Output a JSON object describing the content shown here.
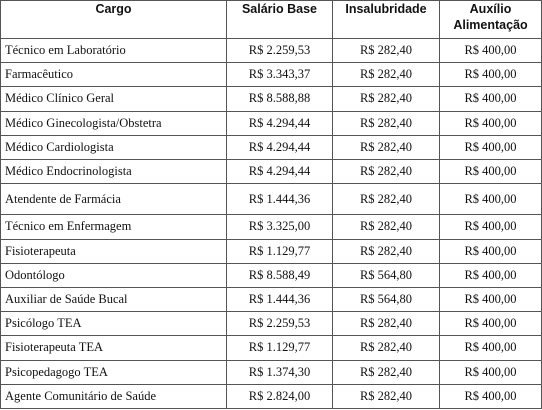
{
  "table": {
    "headers": {
      "cargo": "Cargo",
      "salario": "Salário Base",
      "insalubridade": "Insalubridade",
      "auxilio_line1": "Auxílio",
      "auxilio_line2": "Alimentação"
    },
    "rows": [
      {
        "cargo": "Técnico em Laboratório",
        "salario": "R$ 2.259,53",
        "insalubridade": "R$ 282,40",
        "auxilio": "R$ 400,00"
      },
      {
        "cargo": "Farmacêutico",
        "salario": "R$ 3.343,37",
        "insalubridade": "R$ 282,40",
        "auxilio": "R$ 400,00"
      },
      {
        "cargo": "Médico Clínico Geral",
        "salario": "R$ 8.588,88",
        "insalubridade": "R$ 282,40",
        "auxilio": "R$ 400,00"
      },
      {
        "cargo": "Médico Ginecologista/Obstetra",
        "salario": "R$ 4.294,44",
        "insalubridade": "R$ 282,40",
        "auxilio": "R$ 400,00"
      },
      {
        "cargo": "Médico Cardiologista",
        "salario": "R$ 4.294,44",
        "insalubridade": "R$ 282,40",
        "auxilio": "R$ 400,00"
      },
      {
        "cargo": "Médico Endocrinologista",
        "salario": "R$ 4.294,44",
        "insalubridade": "R$ 282,40",
        "auxilio": "R$ 400,00"
      },
      {
        "cargo": "Atendente de Farmácia",
        "salario": "R$ 1.444,36",
        "insalubridade": "R$ 282,40",
        "auxilio": "R$ 400,00"
      },
      {
        "cargo": "Técnico em Enfermagem",
        "salario": "R$ 3.325,00",
        "insalubridade": "R$ 282,40",
        "auxilio": "R$ 400,00"
      },
      {
        "cargo": "Fisioterapeuta",
        "salario": "R$ 1.129,77",
        "insalubridade": "R$ 282,40",
        "auxilio": "R$ 400,00"
      },
      {
        "cargo": "Odontólogo",
        "salario": "R$ 8.588,49",
        "insalubridade": "R$ 564,80",
        "auxilio": "R$ 400,00"
      },
      {
        "cargo": "Auxiliar de Saúde Bucal",
        "salario": "R$ 1.444,36",
        "insalubridade": "R$ 564,80",
        "auxilio": "R$ 400,00"
      },
      {
        "cargo": "Psicólogo TEA",
        "salario": "R$ 2.259,53",
        "insalubridade": "R$ 282,40",
        "auxilio": "R$ 400,00"
      },
      {
        "cargo": "Fisioterapeuta TEA",
        "salario": "R$ 1.129,77",
        "insalubridade": "R$ 282,40",
        "auxilio": "R$ 400,00"
      },
      {
        "cargo": "Psicopedagogo TEA",
        "salario": "R$ 1.374,30",
        "insalubridade": "R$ 282,40",
        "auxilio": "R$ 400,00"
      },
      {
        "cargo": "Agente Comunitário de Saúde",
        "salario": "R$ 2.824,00",
        "insalubridade": "R$ 282,40",
        "auxilio": "R$ 400,00"
      }
    ]
  }
}
